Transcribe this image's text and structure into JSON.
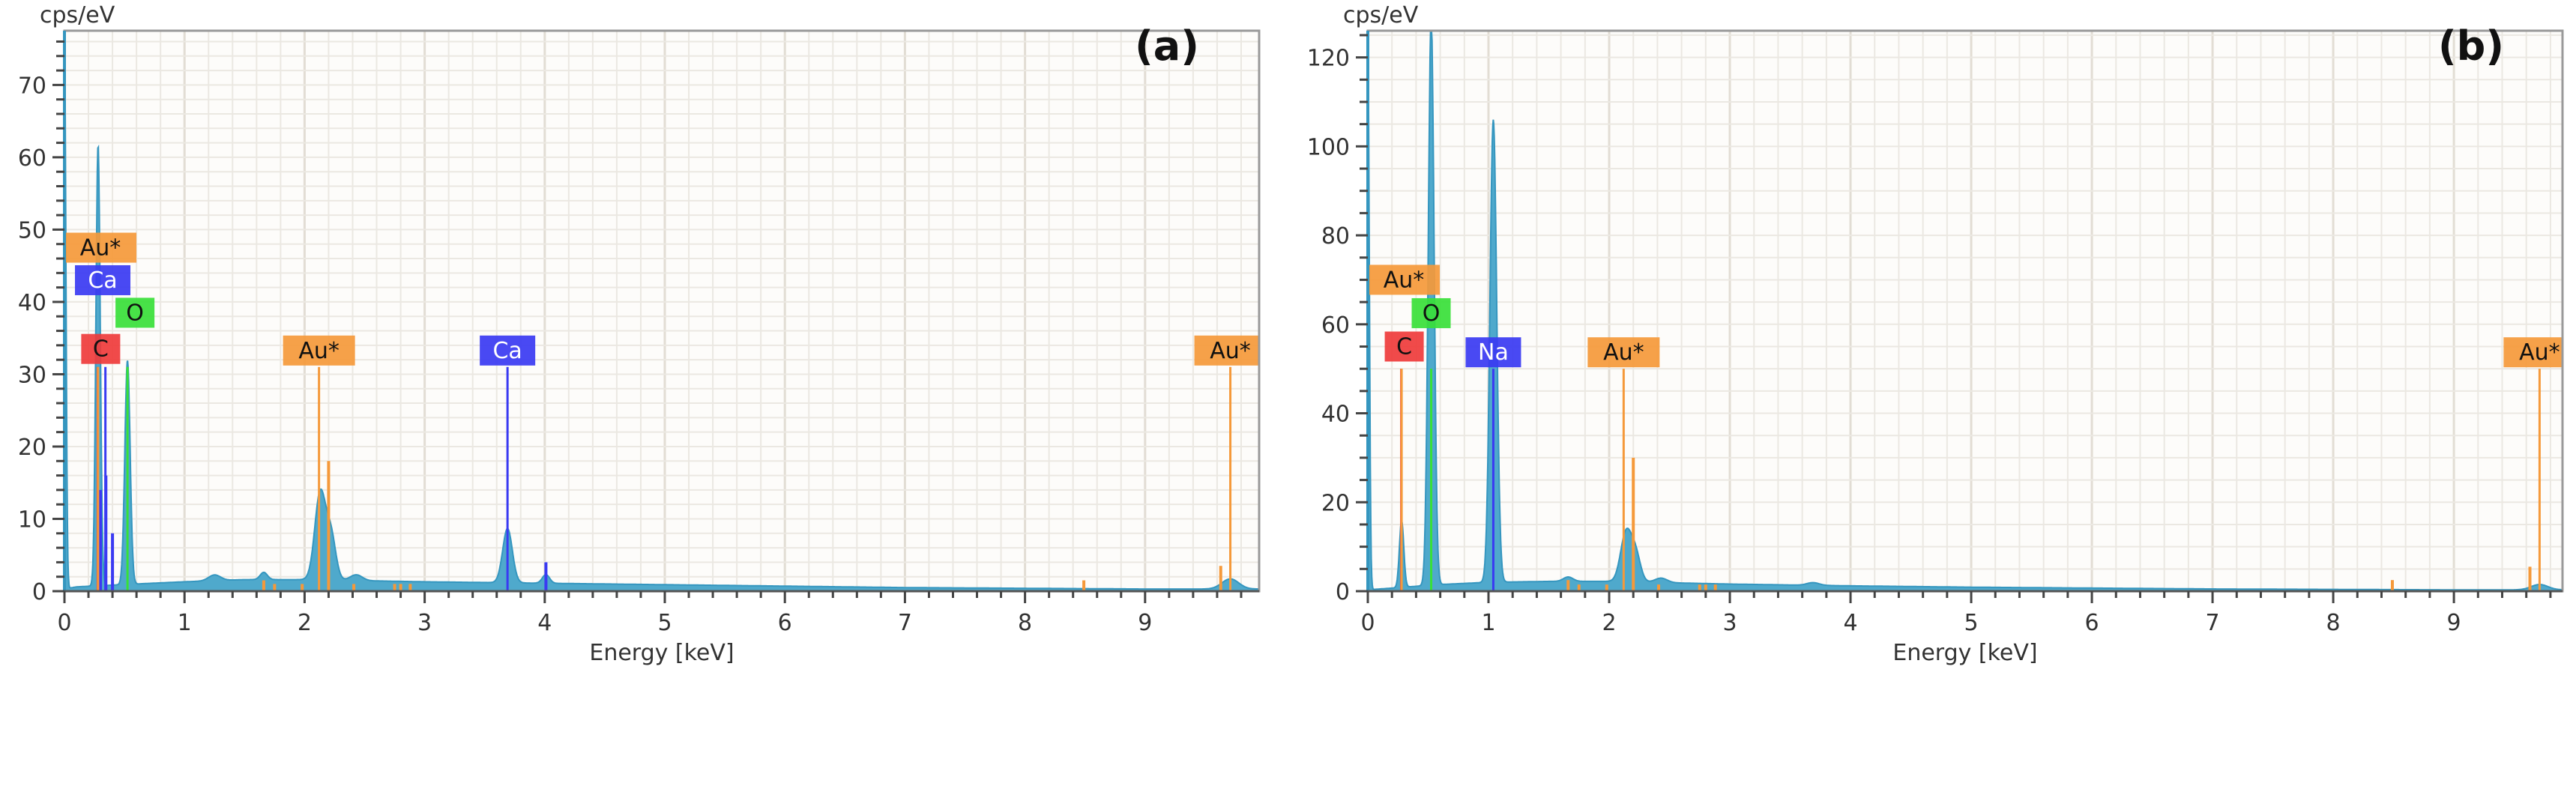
{
  "colors": {
    "spectrum": "#4fa9cc",
    "spectrum_stroke": "#3596bf",
    "C": "#ef3b3b",
    "O": "#38e038",
    "Ca": "#3a3af2",
    "Na": "#3a3af2",
    "Au*": "#f5993a",
    "grid": "#ebe8e2",
    "axis": "#888888"
  },
  "chart_data": [
    {
      "type": "area",
      "panel_label": "(a)",
      "ylabel": "cps/eV",
      "xlabel": "Energy [keV]",
      "xlim": [
        0,
        9.95
      ],
      "ylim": [
        0,
        77.5
      ],
      "x_ticks": [
        "0",
        "1",
        "2",
        "3",
        "4",
        "5",
        "6",
        "7",
        "8",
        "9"
      ],
      "y_ticks": [
        "0",
        "10",
        "20",
        "30",
        "40",
        "50",
        "60",
        "70"
      ],
      "y_tick_step": 10,
      "grid": true,
      "background": [
        [
          0,
          0.3
        ],
        [
          0.1,
          0.6
        ],
        [
          0.6,
          1.0
        ],
        [
          1.0,
          1.3
        ],
        [
          1.5,
          1.6
        ],
        [
          2.0,
          1.6
        ],
        [
          3.0,
          1.3
        ],
        [
          4.0,
          1.1
        ],
        [
          5.0,
          0.9
        ],
        [
          6.0,
          0.7
        ],
        [
          7.0,
          0.5
        ],
        [
          8.0,
          0.4
        ],
        [
          9.0,
          0.3
        ],
        [
          9.95,
          0.3
        ]
      ],
      "peaks": [
        {
          "energy": 0.0,
          "height": 77,
          "width": 0.012
        },
        {
          "energy": 0.28,
          "height": 61,
          "width": 0.018
        },
        {
          "energy": 0.525,
          "height": 31,
          "width": 0.022
        },
        {
          "energy": 1.25,
          "height": 0.8,
          "width": 0.05
        },
        {
          "energy": 1.66,
          "height": 1.0,
          "width": 0.03
        },
        {
          "energy": 2.13,
          "height": 12,
          "width": 0.045
        },
        {
          "energy": 2.22,
          "height": 6,
          "width": 0.04
        },
        {
          "energy": 2.43,
          "height": 0.8,
          "width": 0.05
        },
        {
          "energy": 3.69,
          "height": 7.5,
          "width": 0.04
        },
        {
          "energy": 4.01,
          "height": 1.2,
          "width": 0.03
        },
        {
          "energy": 9.71,
          "height": 1.4,
          "width": 0.07
        }
      ],
      "element_lines": [
        {
          "element": "C",
          "energy": 0.277,
          "height": 31,
          "label": "C"
        },
        {
          "element": "Ca",
          "energy": 0.341,
          "height": 31,
          "label": "Ca"
        },
        {
          "element": "Ca",
          "energy": 0.3,
          "height": 14
        },
        {
          "element": "Ca",
          "energy": 0.345,
          "height": 16
        },
        {
          "element": "Ca",
          "energy": 0.4,
          "height": 8
        },
        {
          "element": "O",
          "energy": 0.525,
          "height": 31,
          "label": "O"
        },
        {
          "element": "Au*",
          "energy": 0.28,
          "height": 31,
          "label": "Au*"
        },
        {
          "element": "Au*",
          "energy": 1.66,
          "height": 1.5
        },
        {
          "element": "Au*",
          "energy": 1.75,
          "height": 1
        },
        {
          "element": "Au*",
          "energy": 1.98,
          "height": 1
        },
        {
          "element": "Au*",
          "energy": 2.12,
          "height": 31,
          "label": "Au*"
        },
        {
          "element": "Au*",
          "energy": 2.2,
          "height": 18
        },
        {
          "element": "Au*",
          "energy": 2.41,
          "height": 1
        },
        {
          "element": "Au*",
          "energy": 2.75,
          "height": 1
        },
        {
          "element": "Au*",
          "energy": 2.8,
          "height": 1
        },
        {
          "element": "Au*",
          "energy": 2.88,
          "height": 1
        },
        {
          "element": "Ca",
          "energy": 3.69,
          "height": 31,
          "label": "Ca"
        },
        {
          "element": "Ca",
          "energy": 4.01,
          "height": 4
        },
        {
          "element": "Au*",
          "energy": 8.49,
          "height": 1.5
        },
        {
          "element": "Au*",
          "energy": 9.63,
          "height": 3.5
        },
        {
          "element": "Au*",
          "energy": 9.71,
          "height": 31,
          "label": "Au*"
        }
      ]
    },
    {
      "type": "area",
      "panel_label": "(b)",
      "ylabel": "cps/eV",
      "xlabel": "Energy [keV]",
      "xlim": [
        0,
        9.9
      ],
      "ylim": [
        0,
        126
      ],
      "x_ticks": [
        "0",
        "1",
        "2",
        "3",
        "4",
        "5",
        "6",
        "7",
        "8",
        "9"
      ],
      "y_ticks": [
        "0",
        "20",
        "40",
        "60",
        "80",
        "100",
        "120"
      ],
      "y_tick_step": 20,
      "grid": true,
      "background": [
        [
          0,
          0.3
        ],
        [
          0.1,
          0.5
        ],
        [
          0.6,
          1.5
        ],
        [
          1.0,
          2.0
        ],
        [
          1.5,
          2.2
        ],
        [
          2.0,
          2.2
        ],
        [
          3.0,
          1.6
        ],
        [
          4.0,
          1.2
        ],
        [
          5.0,
          0.9
        ],
        [
          6.0,
          0.7
        ],
        [
          7.0,
          0.5
        ],
        [
          8.0,
          0.4
        ],
        [
          9.0,
          0.3
        ],
        [
          9.9,
          0.3
        ]
      ],
      "peaks": [
        {
          "energy": 0.0,
          "height": 125,
          "width": 0.012
        },
        {
          "energy": 0.28,
          "height": 15,
          "width": 0.018
        },
        {
          "energy": 0.525,
          "height": 128,
          "width": 0.024
        },
        {
          "energy": 1.04,
          "height": 104,
          "width": 0.028
        },
        {
          "energy": 1.66,
          "height": 1.0,
          "width": 0.04
        },
        {
          "energy": 2.14,
          "height": 11,
          "width": 0.045
        },
        {
          "energy": 2.22,
          "height": 6,
          "width": 0.04
        },
        {
          "energy": 2.43,
          "height": 1.0,
          "width": 0.05
        },
        {
          "energy": 3.69,
          "height": 0.6,
          "width": 0.05
        },
        {
          "energy": 9.71,
          "height": 1.2,
          "width": 0.07
        }
      ],
      "element_lines": [
        {
          "element": "C",
          "energy": 0.277,
          "height": 50,
          "label": "C"
        },
        {
          "element": "O",
          "energy": 0.525,
          "height": 50,
          "label": "O"
        },
        {
          "element": "Au*",
          "energy": 0.28,
          "height": 50,
          "label": "Au*"
        },
        {
          "element": "Na",
          "energy": 1.04,
          "height": 50,
          "label": "Na"
        },
        {
          "element": "Au*",
          "energy": 1.66,
          "height": 2.5
        },
        {
          "element": "Au*",
          "energy": 1.75,
          "height": 1.5
        },
        {
          "element": "Au*",
          "energy": 1.98,
          "height": 1.5
        },
        {
          "element": "Au*",
          "energy": 2.12,
          "height": 50,
          "label": "Au*"
        },
        {
          "element": "Au*",
          "energy": 2.2,
          "height": 30
        },
        {
          "element": "Au*",
          "energy": 2.41,
          "height": 1.5
        },
        {
          "element": "Au*",
          "energy": 2.75,
          "height": 1.5
        },
        {
          "element": "Au*",
          "energy": 2.8,
          "height": 1.5
        },
        {
          "element": "Au*",
          "energy": 2.88,
          "height": 1.5
        },
        {
          "element": "Au*",
          "energy": 8.49,
          "height": 2.5
        },
        {
          "element": "Au*",
          "energy": 9.63,
          "height": 5.5
        },
        {
          "element": "Au*",
          "energy": 9.71,
          "height": 50,
          "label": "Au*"
        }
      ]
    }
  ]
}
